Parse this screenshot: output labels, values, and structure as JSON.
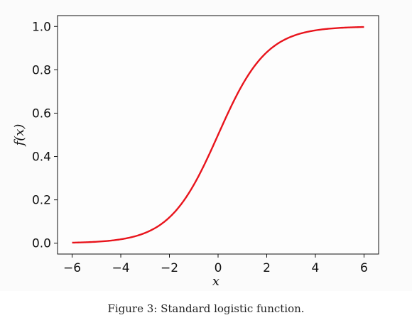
{
  "chart_data": {
    "type": "line",
    "function": "f(x) = 1 / (1 + e^(-x))",
    "series": [
      {
        "color": "#e8141c",
        "x": [
          -6,
          -5,
          -4,
          -3,
          -2,
          -1,
          0,
          1,
          2,
          3,
          4,
          5,
          6
        ],
        "y": [
          0.0025,
          0.0067,
          0.018,
          0.047,
          0.119,
          0.269,
          0.5,
          0.731,
          0.881,
          0.953,
          0.982,
          0.9933,
          0.9975
        ]
      }
    ],
    "xlabel": "x",
    "ylabel": "f(x)",
    "xlim": [
      -6.6,
      6.6
    ],
    "ylim": [
      -0.05,
      1.05
    ],
    "xticks": [
      -6,
      -4,
      -2,
      0,
      2,
      4,
      6
    ],
    "xtick_labels": [
      "−6",
      "−4",
      "−2",
      "0",
      "2",
      "4",
      "6"
    ],
    "yticks": [
      0.0,
      0.2,
      0.4,
      0.6,
      0.8,
      1.0
    ],
    "ytick_labels": [
      "0.0",
      "0.2",
      "0.4",
      "0.6",
      "0.8",
      "1.0"
    ],
    "grid": false
  },
  "caption": "Figure 3: Standard logistic function."
}
